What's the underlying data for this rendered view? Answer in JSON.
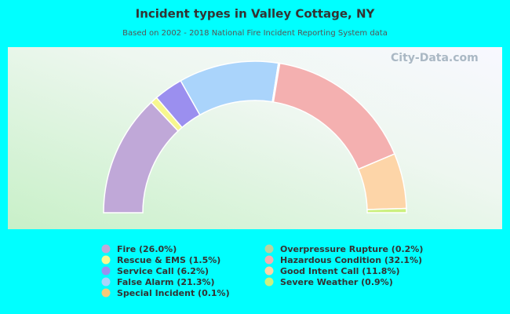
{
  "chart_data": {
    "type": "half-donut",
    "title": "Incident types in Valley Cottage, NY",
    "subtitle": "Based on 2002 - 2018 National Fire Incident Reporting System data",
    "watermark": "City-Data.com",
    "categories": [
      "Fire (26.0%)",
      "Rescue & EMS (1.5%)",
      "Service Call (6.2%)",
      "False Alarm (21.3%)",
      "Special Incident (0.1%)",
      "Overpressure Rupture (0.2%)",
      "Hazardous Condition (32.1%)",
      "Good Intent Call (11.8%)",
      "Severe Weather (0.9%)"
    ],
    "values": [
      26.0,
      1.5,
      6.2,
      21.3,
      0.1,
      0.2,
      32.1,
      11.8,
      0.9
    ],
    "colors": [
      "#c0a8d8",
      "#f7f78e",
      "#9b8fef",
      "#aad4fb",
      "#f5c97a",
      "#b8d4a0",
      "#f4b0b0",
      "#fdd5a8",
      "#ccf080"
    ]
  }
}
